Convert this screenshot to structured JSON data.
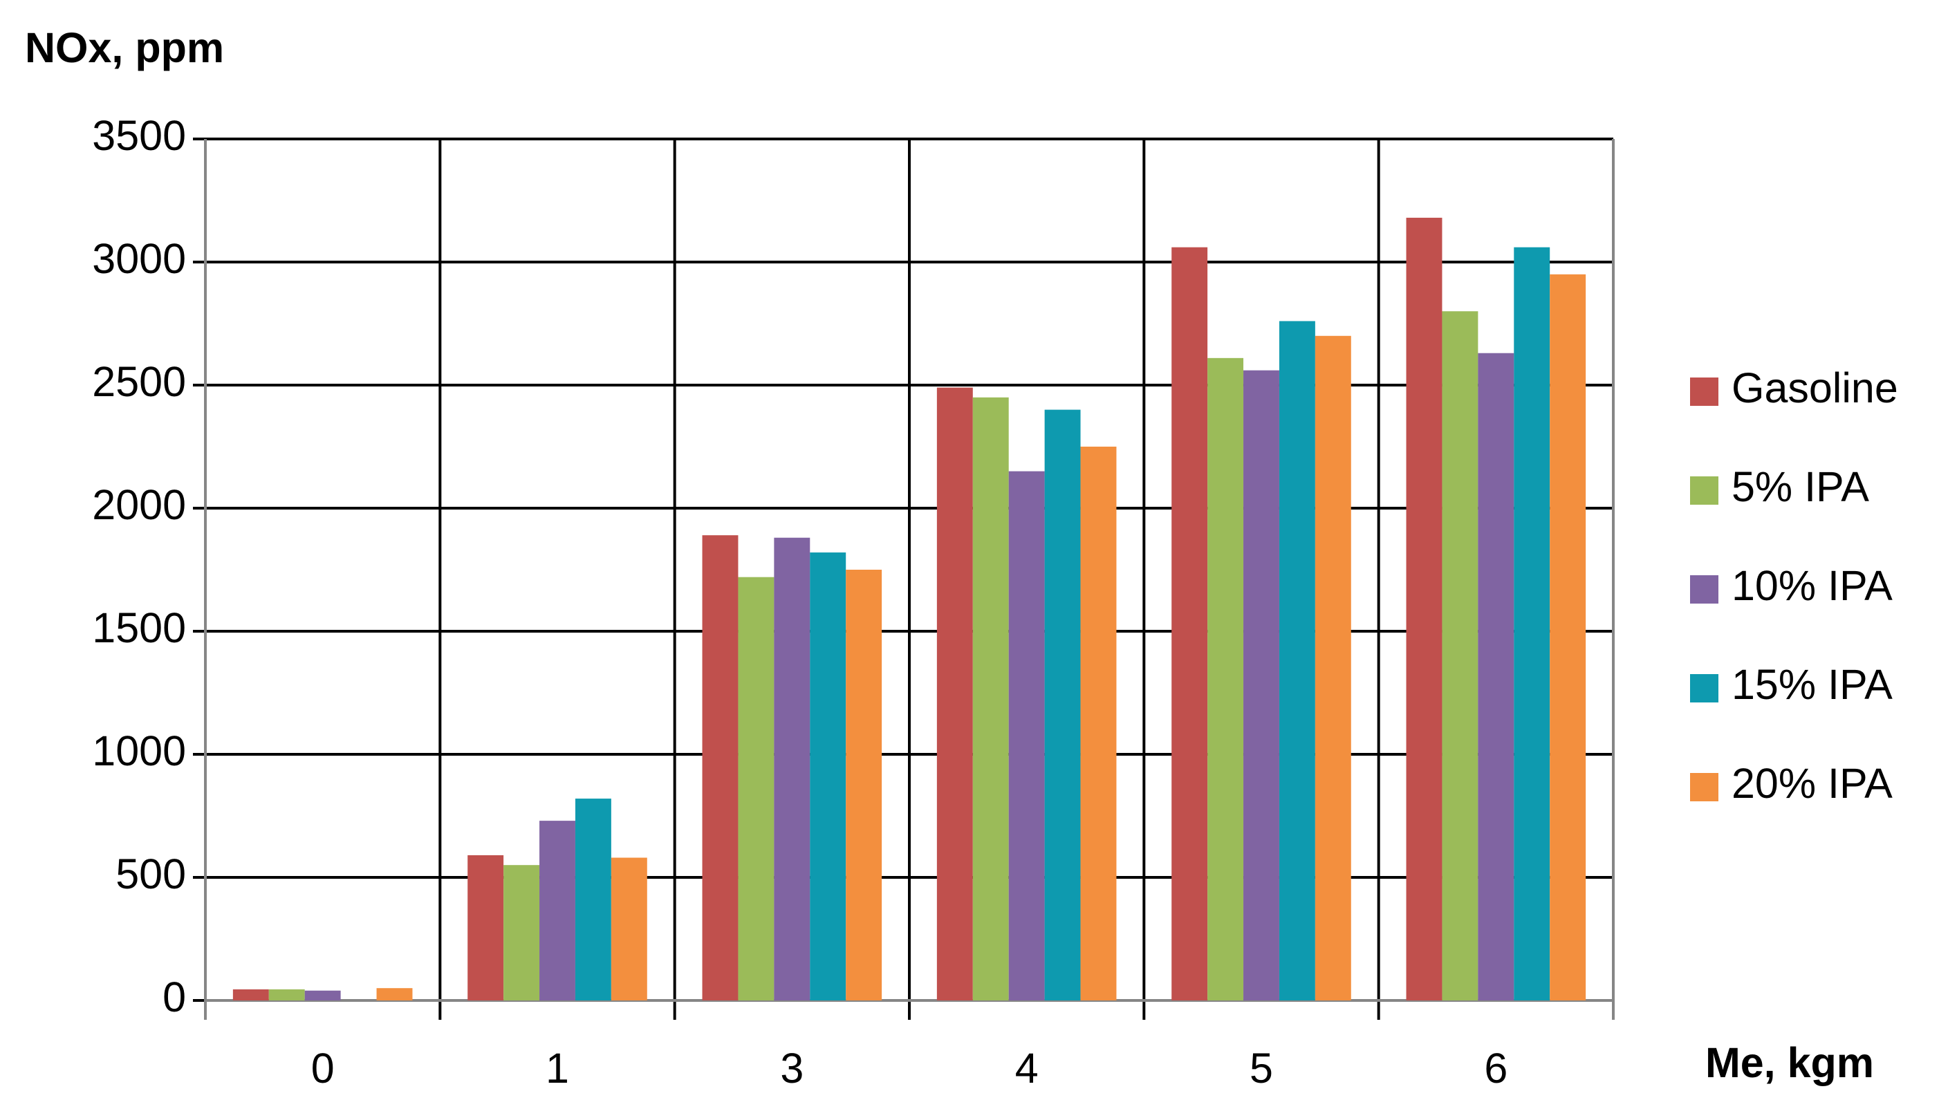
{
  "chart_data": {
    "type": "bar",
    "y_label": "NOx, ppm",
    "x_label": "Me, kgm",
    "categories": [
      "0",
      "1",
      "3",
      "4",
      "5",
      "6"
    ],
    "series": [
      {
        "name": "Gasoline",
        "color": "#c0504d",
        "values": [
          45,
          590,
          1890,
          2490,
          3060,
          3180
        ]
      },
      {
        "name": "5% IPA",
        "color": "#9bbb59",
        "values": [
          45,
          550,
          1720,
          2450,
          2610,
          2800
        ]
      },
      {
        "name": "10% IPA",
        "color": "#8064a2",
        "values": [
          40,
          730,
          1880,
          2150,
          2560,
          2630
        ]
      },
      {
        "name": "15% IPA",
        "color": "#0e9aaf",
        "values": [
          0,
          820,
          1820,
          2400,
          2760,
          3060
        ]
      },
      {
        "name": "20% IPA",
        "color": "#f38f3e",
        "values": [
          50,
          580,
          1750,
          2250,
          2700,
          2950
        ]
      }
    ],
    "ylim": [
      0,
      3500
    ],
    "yticks": [
      0,
      500,
      1000,
      1500,
      2000,
      2500,
      3000,
      3500
    ],
    "grid": true,
    "legend": "right"
  }
}
